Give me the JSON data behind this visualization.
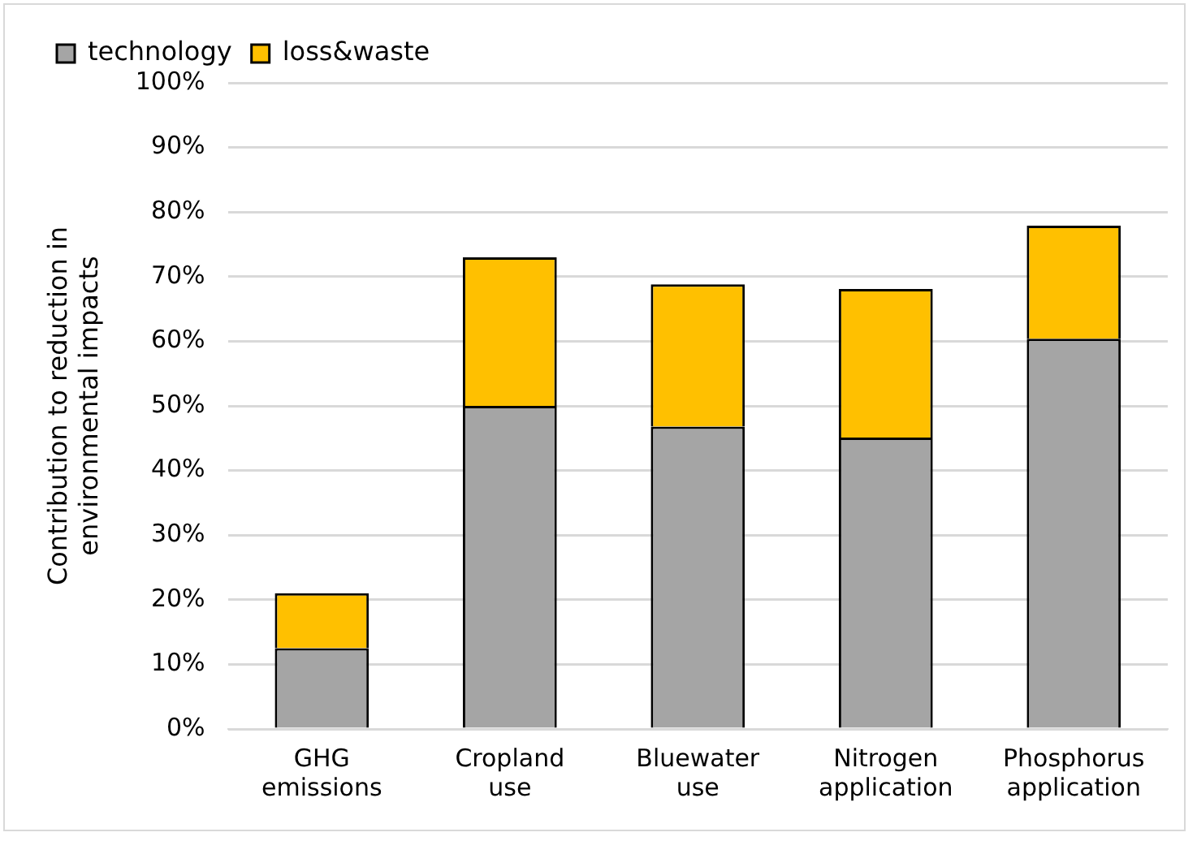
{
  "chart_data": {
    "type": "bar",
    "stacked": true,
    "ylabel": "Contribution to reduction in environmental impacts",
    "categories": [
      "GHG emissions",
      "Cropland use",
      "Bluewater use",
      "Nitrogen application",
      "Phosphorus application"
    ],
    "series": [
      {
        "name": "technology",
        "color": "#a5a5a5",
        "values": [
          12.5,
          50,
          46.8,
          45.1,
          60.4
        ]
      },
      {
        "name": "loss&waste",
        "color": "#ffc000",
        "values": [
          8.5,
          23,
          22,
          23,
          17.5
        ]
      }
    ],
    "ylim": [
      0,
      100
    ],
    "yticks": [
      {
        "value": 0,
        "label": "0%"
      },
      {
        "value": 10,
        "label": "10%"
      },
      {
        "value": 20,
        "label": "20%"
      },
      {
        "value": 30,
        "label": "30%"
      },
      {
        "value": 40,
        "label": "40%"
      },
      {
        "value": 50,
        "label": "50%"
      },
      {
        "value": 60,
        "label": "60%"
      },
      {
        "value": 70,
        "label": "70%"
      },
      {
        "value": 80,
        "label": "80%"
      },
      {
        "value": 90,
        "label": "90%"
      },
      {
        "value": 100,
        "label": "100%"
      }
    ],
    "grid": "y",
    "legend": "top"
  }
}
